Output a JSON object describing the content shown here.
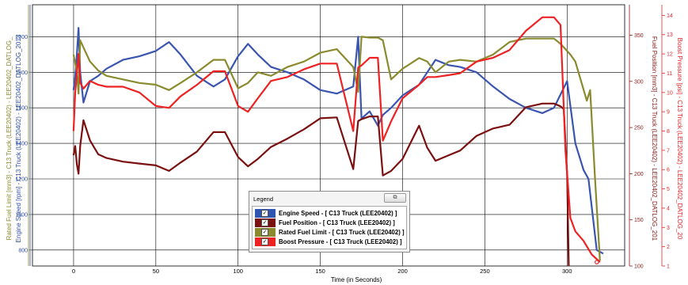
{
  "chart_data": {
    "type": "line",
    "xlabel": "Time (in Seconds)",
    "xlim": [
      -25,
      335
    ],
    "x_ticks": [
      0,
      50,
      100,
      150,
      200,
      250,
      300
    ],
    "axes": {
      "left_outer": {
        "label": "Rated Fuel Limit [mm3] - C13 Truck (LEE20402) - LEE20402_DATLOG_",
        "color": "#8a8a2e",
        "min": 710,
        "max": 2180
      },
      "left_inner": {
        "label": "Engine Speed [rpm] - C13 Truck (LEE20402) - LEE20402_DATLOG_2013",
        "color": "#2e4fa3",
        "min": 710,
        "max": 2180,
        "ticks": [
          800,
          1000,
          1200,
          1400,
          1600,
          1800,
          2000
        ]
      },
      "right_inner": {
        "label": "Fuel Position [mm3] - C13 Truck (LEE20402) - LEE20402_DATLOG_201",
        "color": "#8b1a1a",
        "min": 100,
        "max": 383,
        "ticks": [
          100,
          150,
          200,
          250,
          300,
          350
        ]
      },
      "right_outer": {
        "label": "Boost Pressure [psi] - C13 Truck (LEE20402) - LEE20402_DATLOG_20",
        "color": "#e5262a",
        "min": 1,
        "max": 14.55,
        "ticks": [
          1,
          2,
          3,
          4,
          5,
          6,
          7,
          8,
          9,
          10,
          11,
          12,
          13,
          14
        ]
      }
    },
    "series": [
      {
        "name": "Engine Speed - [ C13 Truck (LEE20402) ]",
        "axis": "left_inner",
        "color": "#3a55b0",
        "x": [
          0,
          1,
          2,
          3,
          4,
          6,
          10,
          15,
          20,
          30,
          40,
          50,
          58,
          65,
          75,
          85,
          92,
          100,
          106,
          112,
          120,
          130,
          140,
          150,
          160,
          170,
          173,
          175,
          180,
          185,
          188,
          193,
          200,
          210,
          215,
          220,
          228,
          235,
          245,
          255,
          265,
          275,
          285,
          292,
          300,
          305,
          310,
          313,
          318,
          322
        ],
        "y": [
          1700,
          1780,
          1900,
          2050,
          1800,
          1630,
          1750,
          1780,
          1820,
          1870,
          1890,
          1920,
          1970,
          1900,
          1780,
          1720,
          1760,
          1890,
          1960,
          1900,
          1830,
          1800,
          1760,
          1700,
          1680,
          1720,
          2000,
          1540,
          1580,
          1500,
          1560,
          1600,
          1670,
          1730,
          1800,
          1870,
          1840,
          1830,
          1800,
          1720,
          1650,
          1600,
          1570,
          1600,
          1750,
          1400,
          1250,
          1200,
          800,
          780
        ]
      },
      {
        "name": "Fuel Position - [ C13 Truck (LEE20402) ]",
        "axis": "right_inner",
        "color": "#7b1010",
        "x": [
          0,
          1,
          2,
          3,
          4,
          6,
          10,
          15,
          20,
          30,
          40,
          50,
          58,
          65,
          75,
          85,
          92,
          100,
          106,
          112,
          120,
          130,
          140,
          150,
          160,
          170,
          173,
          175,
          180,
          185,
          188,
          193,
          200,
          210,
          215,
          220,
          228,
          235,
          245,
          255,
          265,
          275,
          285,
          292,
          296,
          298,
          300,
          301
        ],
        "y": [
          220,
          230,
          210,
          200,
          230,
          258,
          236,
          221,
          217,
          213,
          211,
          209,
          203,
          212,
          224,
          245,
          245,
          218,
          208,
          216,
          229,
          238,
          248,
          260,
          261,
          205,
          257,
          259,
          262,
          262,
          198,
          203,
          216,
          252,
          228,
          214,
          220,
          225,
          241,
          249,
          253,
          272,
          276,
          276,
          273,
          270,
          200,
          100
        ]
      },
      {
        "name": "Rated Fuel Limit - [ C13 Truck (LEE20402) ]",
        "axis": "left_outer",
        "color": "#8a8a2e",
        "x": [
          0,
          1,
          2,
          3,
          4,
          6,
          10,
          15,
          20,
          30,
          40,
          50,
          58,
          65,
          75,
          85,
          92,
          100,
          106,
          112,
          120,
          130,
          140,
          150,
          160,
          170,
          173,
          175,
          180,
          185,
          188,
          193,
          200,
          210,
          215,
          220,
          228,
          235,
          245,
          255,
          265,
          275,
          285,
          292,
          296,
          300,
          302,
          305,
          312,
          314,
          317,
          320
        ],
        "y": [
          1900,
          1850,
          1800,
          1680,
          1980,
          1940,
          1860,
          1810,
          1780,
          1760,
          1740,
          1730,
          1700,
          1740,
          1800,
          1870,
          1870,
          1710,
          1740,
          1800,
          1780,
          1830,
          1860,
          1910,
          1930,
          1830,
          1690,
          2000,
          1995,
          1995,
          1980,
          1760,
          1820,
          1880,
          1860,
          1800,
          1860,
          1870,
          1860,
          1900,
          1970,
          1990,
          1990,
          1990,
          1960,
          1920,
          1900,
          1860,
          1640,
          1700,
          1200,
          740
        ]
      },
      {
        "name": "Boost Pressure - [ C13 Truck (LEE20402) ]",
        "axis": "right_outer",
        "color": "#ee2222",
        "x": [
          0,
          1,
          2,
          3,
          4,
          6,
          10,
          15,
          20,
          30,
          40,
          50,
          58,
          65,
          75,
          85,
          92,
          100,
          106,
          112,
          120,
          130,
          140,
          150,
          160,
          170,
          173,
          175,
          180,
          185,
          188,
          193,
          200,
          210,
          215,
          220,
          228,
          235,
          245,
          255,
          265,
          275,
          285,
          292,
          296,
          299,
          302,
          305,
          310,
          315,
          320
        ],
        "y": [
          8,
          10,
          11,
          12,
          10.5,
          10.2,
          10.6,
          10.4,
          10.3,
          10.3,
          10,
          9.3,
          9.2,
          9.8,
          10.4,
          11.1,
          11.1,
          9.3,
          9.0,
          9.7,
          10.6,
          10.8,
          11.2,
          11.5,
          11.5,
          8.0,
          11.3,
          11.4,
          11.8,
          11.8,
          7.5,
          8.5,
          9.7,
          10.4,
          10.8,
          10.8,
          10.9,
          11.0,
          11.6,
          11.8,
          12.2,
          13.2,
          13.9,
          13.9,
          13.5,
          7.0,
          3.5,
          2.8,
          2.3,
          1.6,
          1.2
        ]
      }
    ]
  },
  "legend": {
    "title": "Legend",
    "close_icon": "restore-icon",
    "items": [
      {
        "label": "Engine Speed - [ C13 Truck (LEE20402) ]",
        "color": "#2f55b2"
      },
      {
        "label": "Fuel Position - [ C13 Truck (LEE20402) ]",
        "color": "#7b1010"
      },
      {
        "label": "Rated Fuel Limit - [ C13 Truck (LEE20402) ]",
        "color": "#8a8a2e"
      },
      {
        "label": "Boost Pressure - [ C13 Truck (LEE20402) ]",
        "color": "#ee2222"
      }
    ]
  }
}
